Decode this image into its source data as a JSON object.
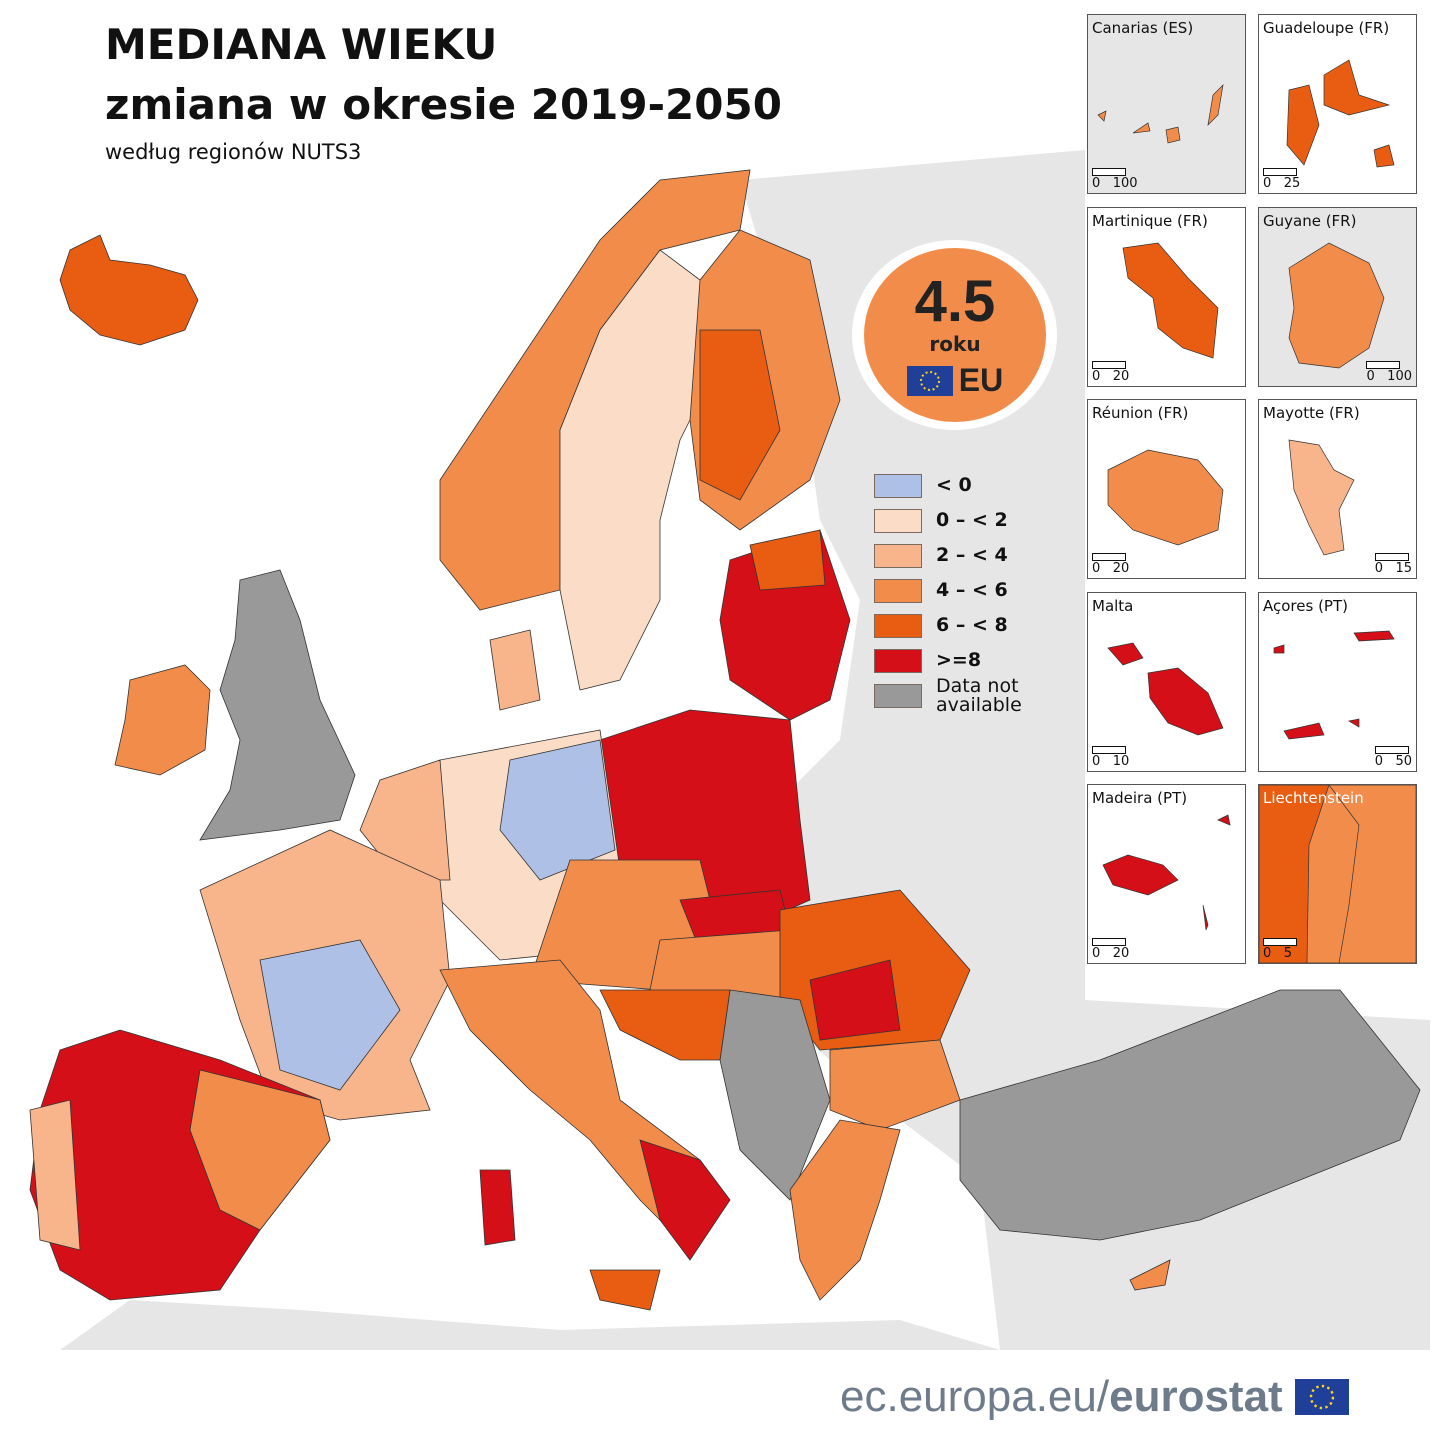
{
  "title": {
    "line1": "MEDIANA WIEKU",
    "line2": "zmiana w  okresie  2019-2050",
    "subtitle": "według regionów NUTS3"
  },
  "eu_badge": {
    "value": "4.5",
    "unit": "roku",
    "label": "EU",
    "icon": "eu-flag-icon"
  },
  "legend": {
    "items": [
      {
        "label": "< 0",
        "color": "#aec0e6"
      },
      {
        "label": "0 – < 2",
        "color": "#fbdcc6"
      },
      {
        "label": "2 – < 4",
        "color": "#f8b48a"
      },
      {
        "label": "4 – < 6",
        "color": "#f28c4a"
      },
      {
        "label": "6 – < 8",
        "color": "#e85d12"
      },
      {
        "label": ">=8",
        "color": "#d40f17"
      },
      {
        "label": "Data not available",
        "color": "#999999"
      }
    ]
  },
  "insets": [
    {
      "name": "Canarias (ES)",
      "scale": [
        "0",
        "100"
      ]
    },
    {
      "name": "Guadeloupe (FR)",
      "scale": [
        "0",
        "25"
      ]
    },
    {
      "name": "Martinique (FR)",
      "scale": [
        "0",
        "20"
      ]
    },
    {
      "name": "Guyane (FR)",
      "scale": [
        "0",
        "100"
      ]
    },
    {
      "name": "Réunion (FR)",
      "scale": [
        "0",
        "20"
      ]
    },
    {
      "name": "Mayotte (FR)",
      "scale": [
        "0",
        "15"
      ]
    },
    {
      "name": "Malta",
      "scale": [
        "0",
        "10"
      ]
    },
    {
      "name": "Açores (PT)",
      "scale": [
        "0",
        "50"
      ]
    },
    {
      "name": "Madeira (PT)",
      "scale": [
        "0",
        "20"
      ]
    },
    {
      "name": "Liechtenstein",
      "scale": [
        "0",
        "5"
      ]
    }
  ],
  "footer": {
    "domain": "ec.europa.eu/",
    "brand": "eurostat"
  }
}
